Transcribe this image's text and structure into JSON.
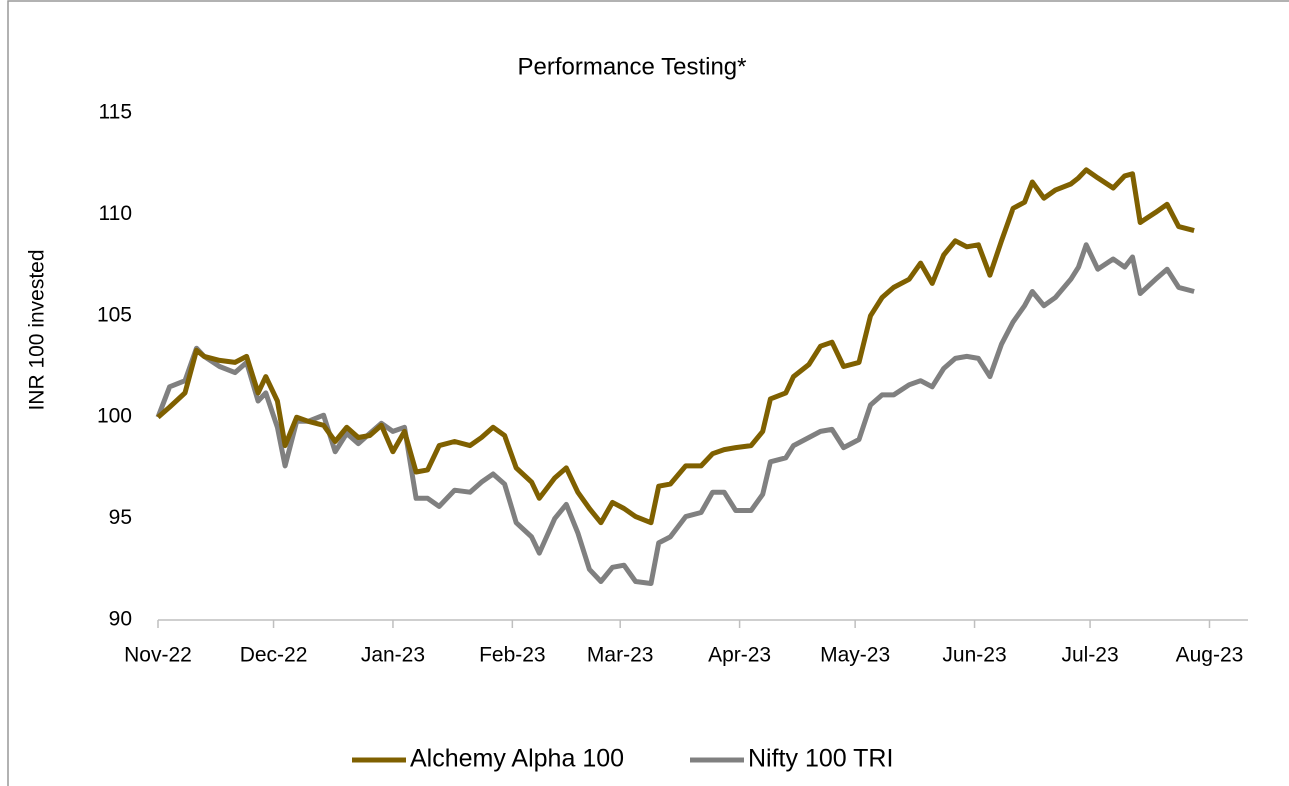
{
  "chart_data": {
    "type": "line",
    "title": "Performance Testing*",
    "y_label": "INR 100 invested",
    "x": [
      0,
      3,
      7,
      10,
      12,
      16,
      20,
      23,
      26,
      28,
      31,
      33,
      36,
      39,
      43,
      46,
      49,
      52,
      55,
      58,
      61,
      64,
      67,
      70,
      73,
      77,
      81,
      84,
      87,
      90,
      93,
      97,
      99,
      103,
      106,
      109,
      112,
      115,
      118,
      121,
      124,
      128,
      130,
      133,
      137,
      141,
      144,
      147,
      150,
      154,
      157,
      159,
      163,
      165,
      169,
      172,
      175,
      178,
      182,
      185,
      188,
      191,
      195,
      198,
      201,
      204,
      207,
      210,
      213,
      216,
      219,
      222,
      225,
      227,
      230,
      233,
      237,
      239,
      241,
      244,
      248,
      251,
      253,
      255,
      259,
      262,
      265,
      269
    ],
    "series": [
      {
        "name": "Alchemy Alpha 100",
        "color": "#7f6000",
        "values": [
          100,
          100.5,
          101.2,
          103.3,
          103,
          102.8,
          102.7,
          103,
          101.2,
          102,
          100.8,
          98.6,
          100,
          99.8,
          99.6,
          98.8,
          99.5,
          99,
          99.1,
          99.6,
          98.3,
          99.3,
          97.3,
          97.4,
          98.6,
          98.8,
          98.6,
          99,
          99.5,
          99.1,
          97.5,
          96.8,
          96,
          97,
          97.5,
          96.3,
          95.5,
          94.8,
          95.8,
          95.5,
          95.1,
          94.8,
          96.6,
          96.7,
          97.6,
          97.6,
          98.2,
          98.4,
          98.5,
          98.6,
          99.3,
          100.9,
          101.2,
          102,
          102.6,
          103.5,
          103.7,
          102.5,
          102.7,
          105,
          105.9,
          106.4,
          106.8,
          107.6,
          106.6,
          108,
          108.7,
          108.4,
          108.5,
          107,
          108.7,
          110.3,
          110.6,
          111.6,
          110.8,
          111.2,
          111.5,
          111.8,
          112.2,
          111.8,
          111.3,
          111.9,
          112,
          109.6,
          110.1,
          110.5,
          109.4,
          109.2
        ]
      },
      {
        "name": "Nifty 100 TRI",
        "color": "#808080",
        "values": [
          100,
          101.5,
          101.8,
          103.4,
          103,
          102.5,
          102.2,
          102.7,
          100.8,
          101.2,
          99.5,
          97.6,
          99.8,
          99.8,
          100.1,
          98.3,
          99.2,
          98.7,
          99.2,
          99.7,
          99.3,
          99.5,
          96,
          96,
          95.6,
          96.4,
          96.3,
          96.8,
          97.2,
          96.7,
          94.8,
          94.1,
          93.3,
          95,
          95.7,
          94.3,
          92.5,
          91.9,
          92.6,
          92.7,
          91.9,
          91.8,
          93.8,
          94.1,
          95.1,
          95.3,
          96.3,
          96.3,
          95.4,
          95.4,
          96.2,
          97.8,
          98,
          98.6,
          99,
          99.3,
          99.4,
          98.5,
          98.9,
          100.6,
          101.1,
          101.1,
          101.6,
          101.8,
          101.5,
          102.4,
          102.9,
          103,
          102.9,
          102,
          103.6,
          104.7,
          105.5,
          106.2,
          105.5,
          105.9,
          106.8,
          107.4,
          108.5,
          107.3,
          107.8,
          107.4,
          107.9,
          106.1,
          106.8,
          107.3,
          106.4,
          106.2
        ]
      }
    ],
    "xlim": [
      0,
      283
    ],
    "xticks": [
      {
        "value": 0,
        "label": "Nov-22"
      },
      {
        "value": 30,
        "label": "Dec-22"
      },
      {
        "value": 61,
        "label": "Jan-23"
      },
      {
        "value": 92,
        "label": "Feb-23"
      },
      {
        "value": 120,
        "label": "Mar-23"
      },
      {
        "value": 151,
        "label": "Apr-23"
      },
      {
        "value": 181,
        "label": "May-23"
      },
      {
        "value": 212,
        "label": "Jun-23"
      },
      {
        "value": 242,
        "label": "Jul-23"
      },
      {
        "value": 273,
        "label": "Aug-23"
      }
    ],
    "ylim": [
      90,
      115
    ],
    "yticks": [
      90,
      95,
      100,
      105,
      110,
      115
    ],
    "grid": false,
    "legend": "bottom"
  }
}
